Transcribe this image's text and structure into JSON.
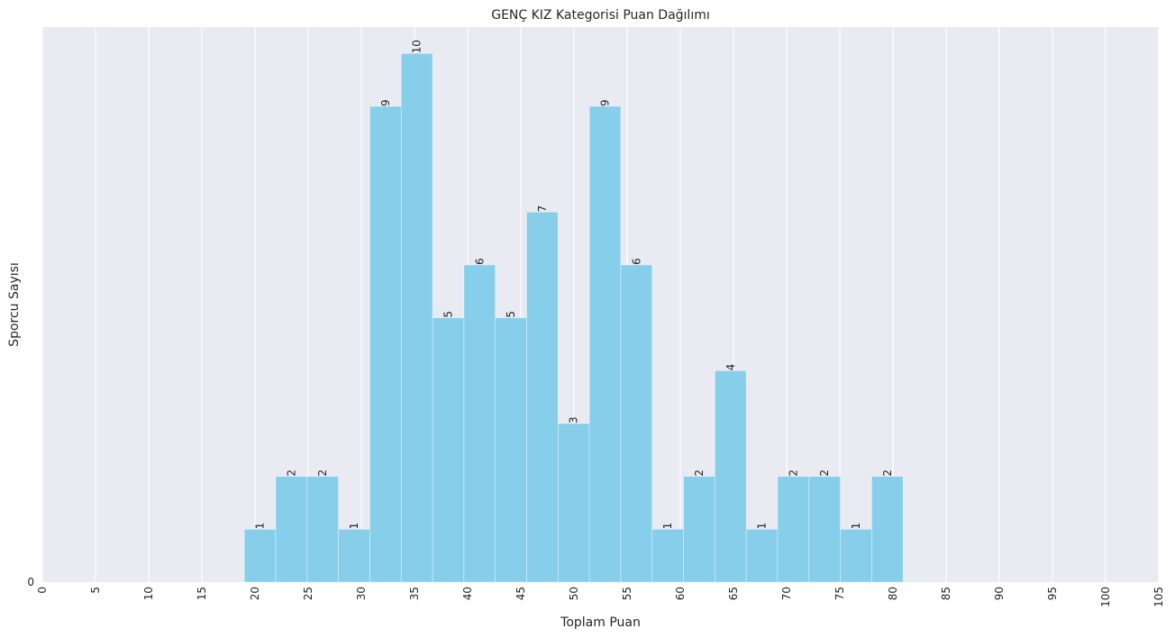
{
  "chart_data": {
    "type": "bar",
    "title": "GENÇ KIZ Kategorisi Puan Dağılımı",
    "xlabel": "Toplam Puan",
    "ylabel": "Sporcu Sayısı",
    "xlim": [
      0,
      105
    ],
    "ylim": [
      0,
      10.5
    ],
    "x_ticks": [
      0,
      5,
      10,
      15,
      20,
      25,
      30,
      35,
      40,
      45,
      50,
      55,
      60,
      65,
      70,
      75,
      80,
      85,
      90,
      95,
      100,
      105
    ],
    "y_ticks": [
      0
    ],
    "grid": "vertical",
    "bin_width": 2.95,
    "bins": [
      {
        "start": 19.0,
        "value": 1
      },
      {
        "start": 21.95,
        "value": 2
      },
      {
        "start": 24.9,
        "value": 2
      },
      {
        "start": 27.85,
        "value": 1
      },
      {
        "start": 30.8,
        "value": 9
      },
      {
        "start": 33.75,
        "value": 10
      },
      {
        "start": 36.7,
        "value": 5
      },
      {
        "start": 39.65,
        "value": 6
      },
      {
        "start": 42.6,
        "value": 5
      },
      {
        "start": 45.55,
        "value": 7
      },
      {
        "start": 48.5,
        "value": 3
      },
      {
        "start": 51.45,
        "value": 9
      },
      {
        "start": 54.4,
        "value": 6
      },
      {
        "start": 57.35,
        "value": 1
      },
      {
        "start": 60.3,
        "value": 2
      },
      {
        "start": 63.25,
        "value": 4
      },
      {
        "start": 66.2,
        "value": 1
      },
      {
        "start": 69.15,
        "value": 2
      },
      {
        "start": 72.1,
        "value": 2
      },
      {
        "start": 75.05,
        "value": 1
      },
      {
        "start": 78.0,
        "value": 2
      }
    ],
    "colors": {
      "bar": "#87ceeb",
      "background": "#eaeaf2",
      "grid": "#ffffff",
      "text": "#262626"
    }
  }
}
